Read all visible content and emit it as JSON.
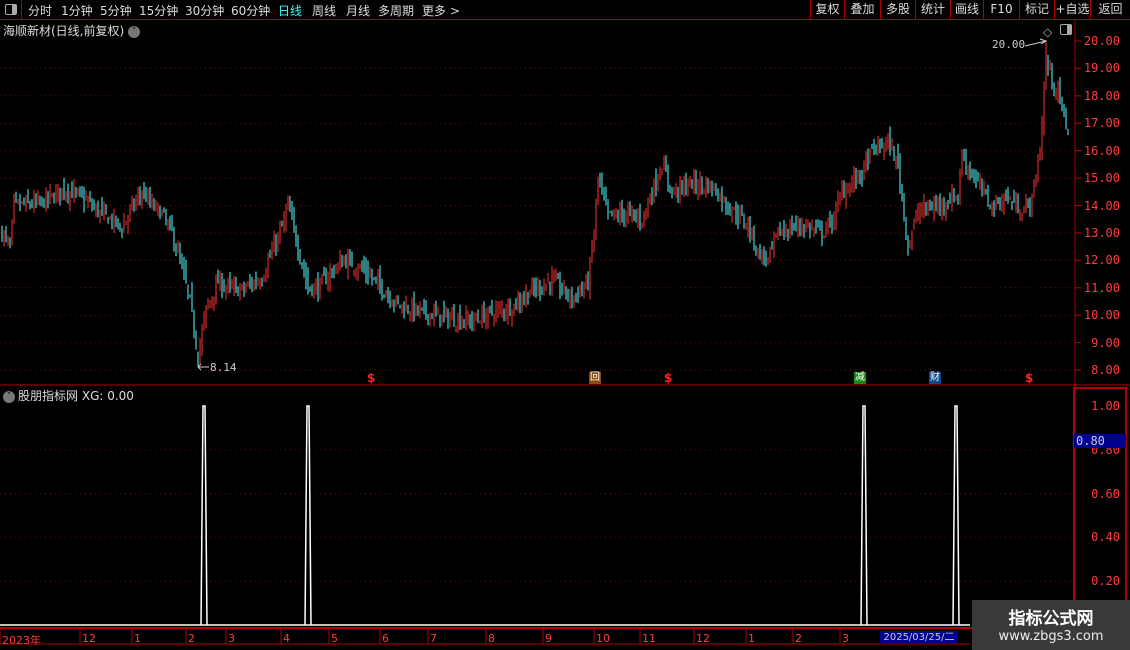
{
  "toolbar": {
    "periods": [
      "分时",
      "1分钟",
      "5分钟",
      "15分钟",
      "30分钟",
      "60分钟",
      "日线",
      "周线",
      "月线",
      "多周期",
      "更多 >"
    ],
    "active_period": "日线",
    "right_buttons": [
      "复权",
      "叠加",
      "多股",
      "统计",
      "画线",
      "F10",
      "标记",
      "+自选",
      "返回"
    ]
  },
  "main_panel": {
    "title": "海顺新材(日线,前复权)",
    "max_label": "20.00",
    "min_label": "8.14",
    "y_ticks": [
      "20.00",
      "19.00",
      "18.00",
      "17.00",
      "16.00",
      "15.00",
      "14.00",
      "13.00",
      "12.00",
      "11.00",
      "10.00",
      "9.00",
      "8.00"
    ],
    "event_markers": [
      {
        "type": "dividend",
        "icon": "dollar-icon",
        "glyph": "$"
      },
      {
        "type": "repurchase",
        "icon": "hui-icon",
        "glyph": "回",
        "color": "#8a4a10"
      },
      {
        "type": "dividend",
        "icon": "dollar-icon",
        "glyph": "$"
      },
      {
        "type": "reduction",
        "icon": "jian-icon",
        "glyph": "减",
        "color": "#108a10"
      },
      {
        "type": "finance",
        "icon": "cai-icon",
        "glyph": "财",
        "color": "#104a8a"
      },
      {
        "type": "dividend",
        "icon": "dollar-icon",
        "glyph": "$"
      }
    ]
  },
  "sub_panel": {
    "title": "股朋指标网",
    "readout": "XG: 0.00",
    "y_ticks": [
      "1.00",
      "0.80",
      "0.60",
      "0.40",
      "0.20"
    ],
    "highlight_value": "0.80"
  },
  "date_axis": {
    "labels": [
      "2023年",
      "12",
      "1",
      "2",
      "3",
      "4",
      "5",
      "6",
      "7",
      "8",
      "9",
      "10",
      "11",
      "12",
      "1",
      "2",
      "3"
    ],
    "cursor_date": "2025/03/25/二"
  },
  "watermark": {
    "line1": "指标公式网",
    "line2": "www.zbgs3.com"
  },
  "colors": {
    "up": "#ff3232",
    "down": "#54ffff",
    "axis": "#b00000",
    "grid": "#8a0000",
    "signal": "#ffffff"
  },
  "chart_data": {
    "type": "candlestick",
    "y_range": [
      8,
      20
    ],
    "close_keypoints_by_candle_index": [
      [
        0,
        13.0
      ],
      [
        4,
        12.5
      ],
      [
        6,
        14.0
      ],
      [
        20,
        14.1
      ],
      [
        31,
        14.6
      ],
      [
        40,
        14.3
      ],
      [
        48,
        13.8
      ],
      [
        60,
        13.2
      ],
      [
        65,
        13.9
      ],
      [
        70,
        14.5
      ],
      [
        75,
        14.0
      ],
      [
        80,
        13.7
      ],
      [
        85,
        13.0
      ],
      [
        89,
        12.0
      ],
      [
        94,
        10.5
      ],
      [
        98,
        8.5
      ],
      [
        102,
        10.2
      ],
      [
        108,
        11.2
      ],
      [
        113,
        11.0
      ],
      [
        120,
        10.9
      ],
      [
        130,
        11.4
      ],
      [
        136,
        12.5
      ],
      [
        140,
        13.2
      ],
      [
        143,
        14.0
      ],
      [
        148,
        12.5
      ],
      [
        153,
        11.0
      ],
      [
        158,
        11.0
      ],
      [
        165,
        11.6
      ],
      [
        171,
        12.0
      ],
      [
        180,
        11.7
      ],
      [
        190,
        11.0
      ],
      [
        198,
        10.4
      ],
      [
        210,
        10.1
      ],
      [
        223,
        9.9
      ],
      [
        235,
        9.8
      ],
      [
        245,
        10.1
      ],
      [
        255,
        10.3
      ],
      [
        263,
        10.8
      ],
      [
        275,
        11.3
      ],
      [
        285,
        10.6
      ],
      [
        293,
        11.2
      ],
      [
        296,
        13.0
      ],
      [
        298,
        15.0
      ],
      [
        303,
        13.6
      ],
      [
        313,
        13.7
      ],
      [
        320,
        13.5
      ],
      [
        325,
        14.5
      ],
      [
        330,
        15.5
      ],
      [
        335,
        14.5
      ],
      [
        345,
        14.8
      ],
      [
        355,
        14.7
      ],
      [
        363,
        14.0
      ],
      [
        373,
        13.3
      ],
      [
        378,
        12.3
      ],
      [
        383,
        12.0
      ],
      [
        388,
        13.0
      ],
      [
        400,
        13.3
      ],
      [
        410,
        13.0
      ],
      [
        415,
        13.4
      ],
      [
        420,
        14.5
      ],
      [
        430,
        15.2
      ],
      [
        435,
        16.0
      ],
      [
        443,
        16.3
      ],
      [
        448,
        15.5
      ],
      [
        453,
        12.5
      ],
      [
        458,
        13.8
      ],
      [
        468,
        14.0
      ],
      [
        478,
        14.4
      ],
      [
        480,
        15.8
      ],
      [
        488,
        14.8
      ],
      [
        495,
        14.0
      ],
      [
        503,
        14.3
      ],
      [
        510,
        13.8
      ],
      [
        515,
        14.2
      ],
      [
        519,
        16.0
      ],
      [
        522,
        19.3
      ],
      [
        528,
        18.0
      ],
      [
        533,
        16.8
      ]
    ],
    "annotated_high": 20.0,
    "annotated_low": 8.14,
    "xg_signal": {
      "values_at_spikes": [
        1,
        1,
        1,
        1
      ],
      "spike_candle_index": [
        101,
        153,
        431,
        477
      ],
      "baseline": 0
    }
  }
}
